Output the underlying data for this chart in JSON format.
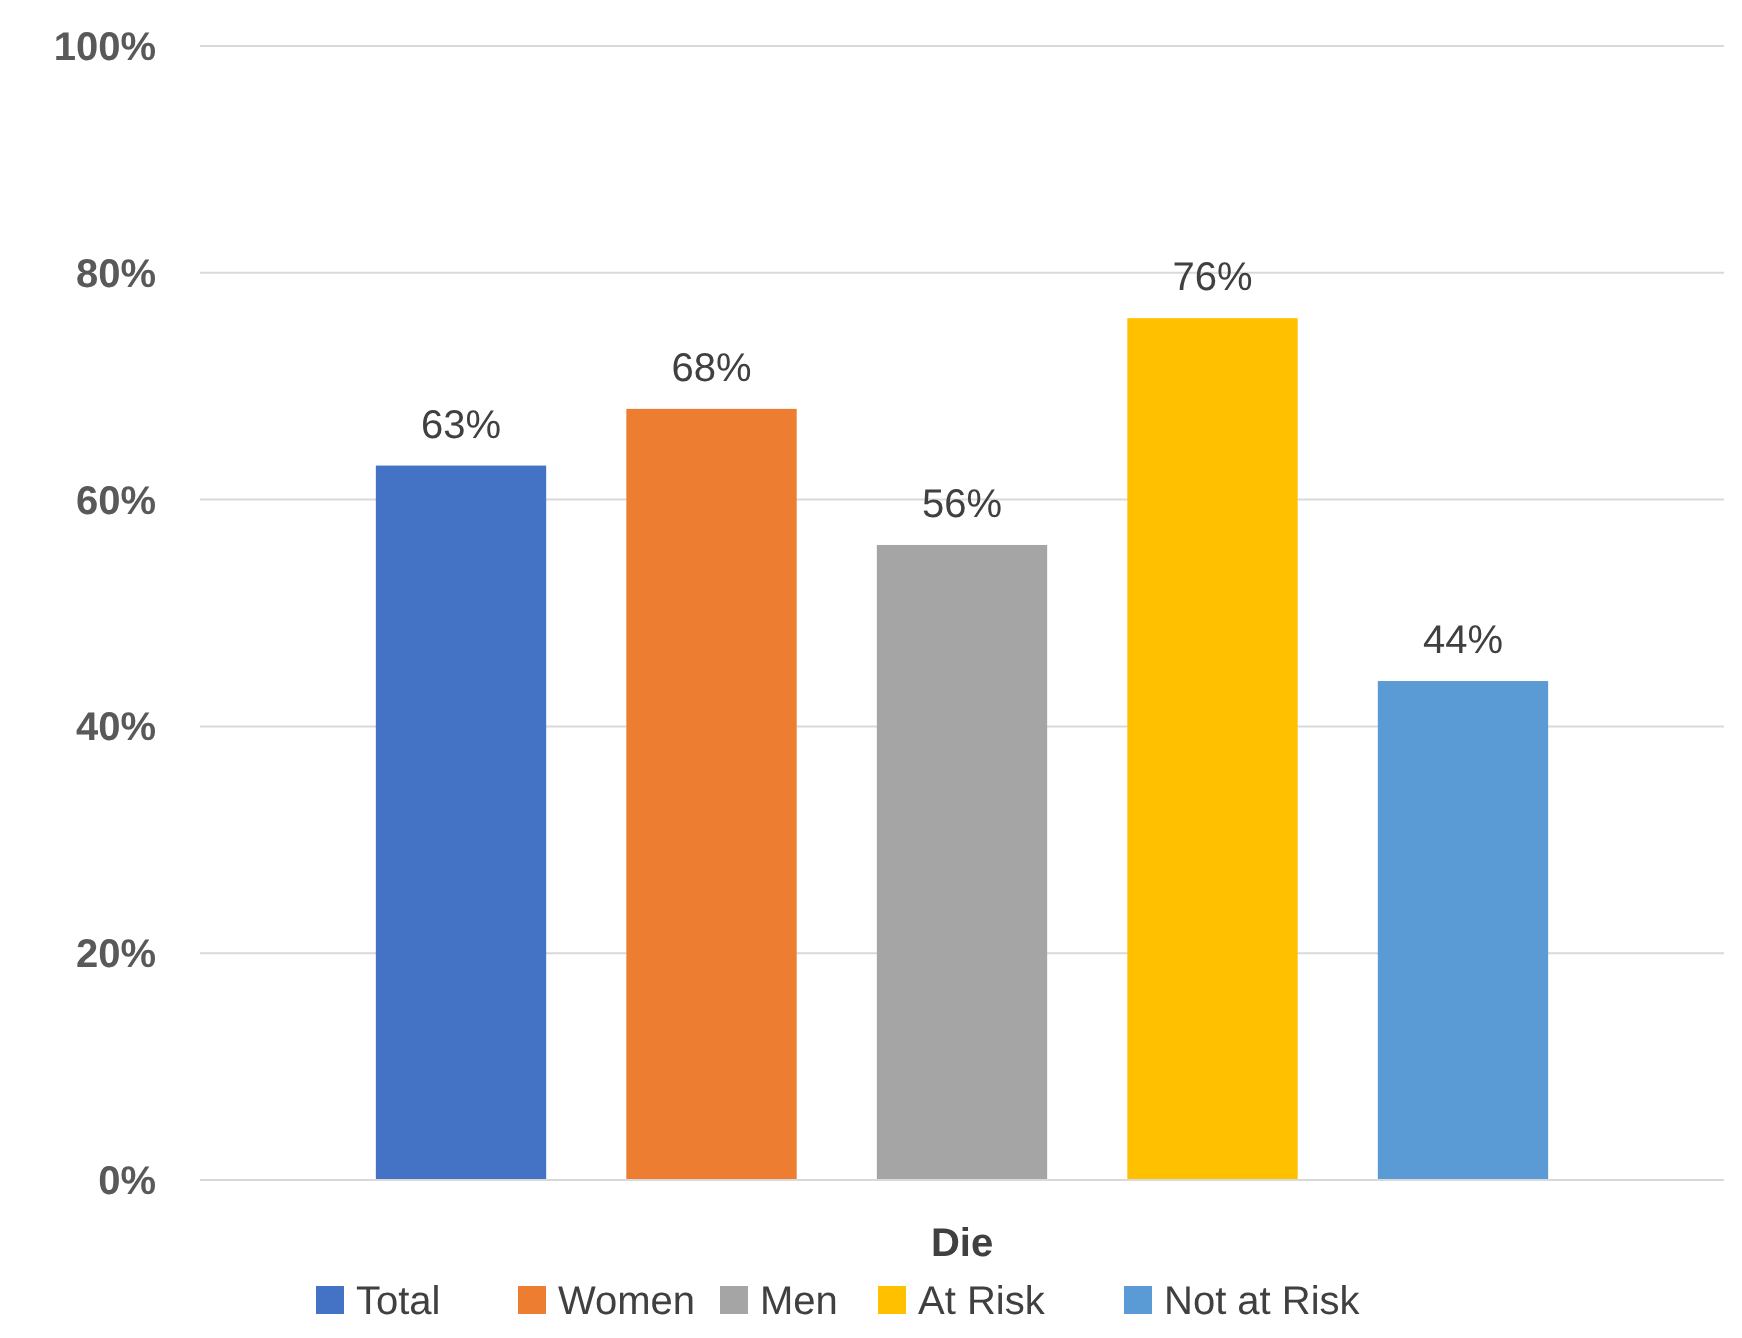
{
  "chart_data": {
    "type": "bar",
    "categories": [
      "Die"
    ],
    "series": [
      {
        "name": "Total",
        "color": "#4472c4",
        "values": [
          63
        ],
        "value_labels": [
          "63%"
        ]
      },
      {
        "name": "Women",
        "color": "#ed7d31",
        "values": [
          68
        ],
        "value_labels": [
          "68%"
        ]
      },
      {
        "name": "Men",
        "color": "#a5a5a5",
        "values": [
          56
        ],
        "value_labels": [
          "56%"
        ]
      },
      {
        "name": "At Risk",
        "color": "#ffc000",
        "values": [
          76
        ],
        "value_labels": [
          "76%"
        ]
      },
      {
        "name": "Not at Risk",
        "color": "#5b9bd5",
        "values": [
          44
        ],
        "value_labels": [
          "44%"
        ]
      }
    ],
    "ylim": [
      0,
      100
    ],
    "yticks": [
      {
        "value": 0,
        "label": "0%"
      },
      {
        "value": 20,
        "label": "20%"
      },
      {
        "value": 40,
        "label": "40%"
      },
      {
        "value": 60,
        "label": "60%"
      },
      {
        "value": 80,
        "label": "80%"
      },
      {
        "value": 100,
        "label": "100%"
      }
    ],
    "grid": "y",
    "legend": "bottom"
  }
}
